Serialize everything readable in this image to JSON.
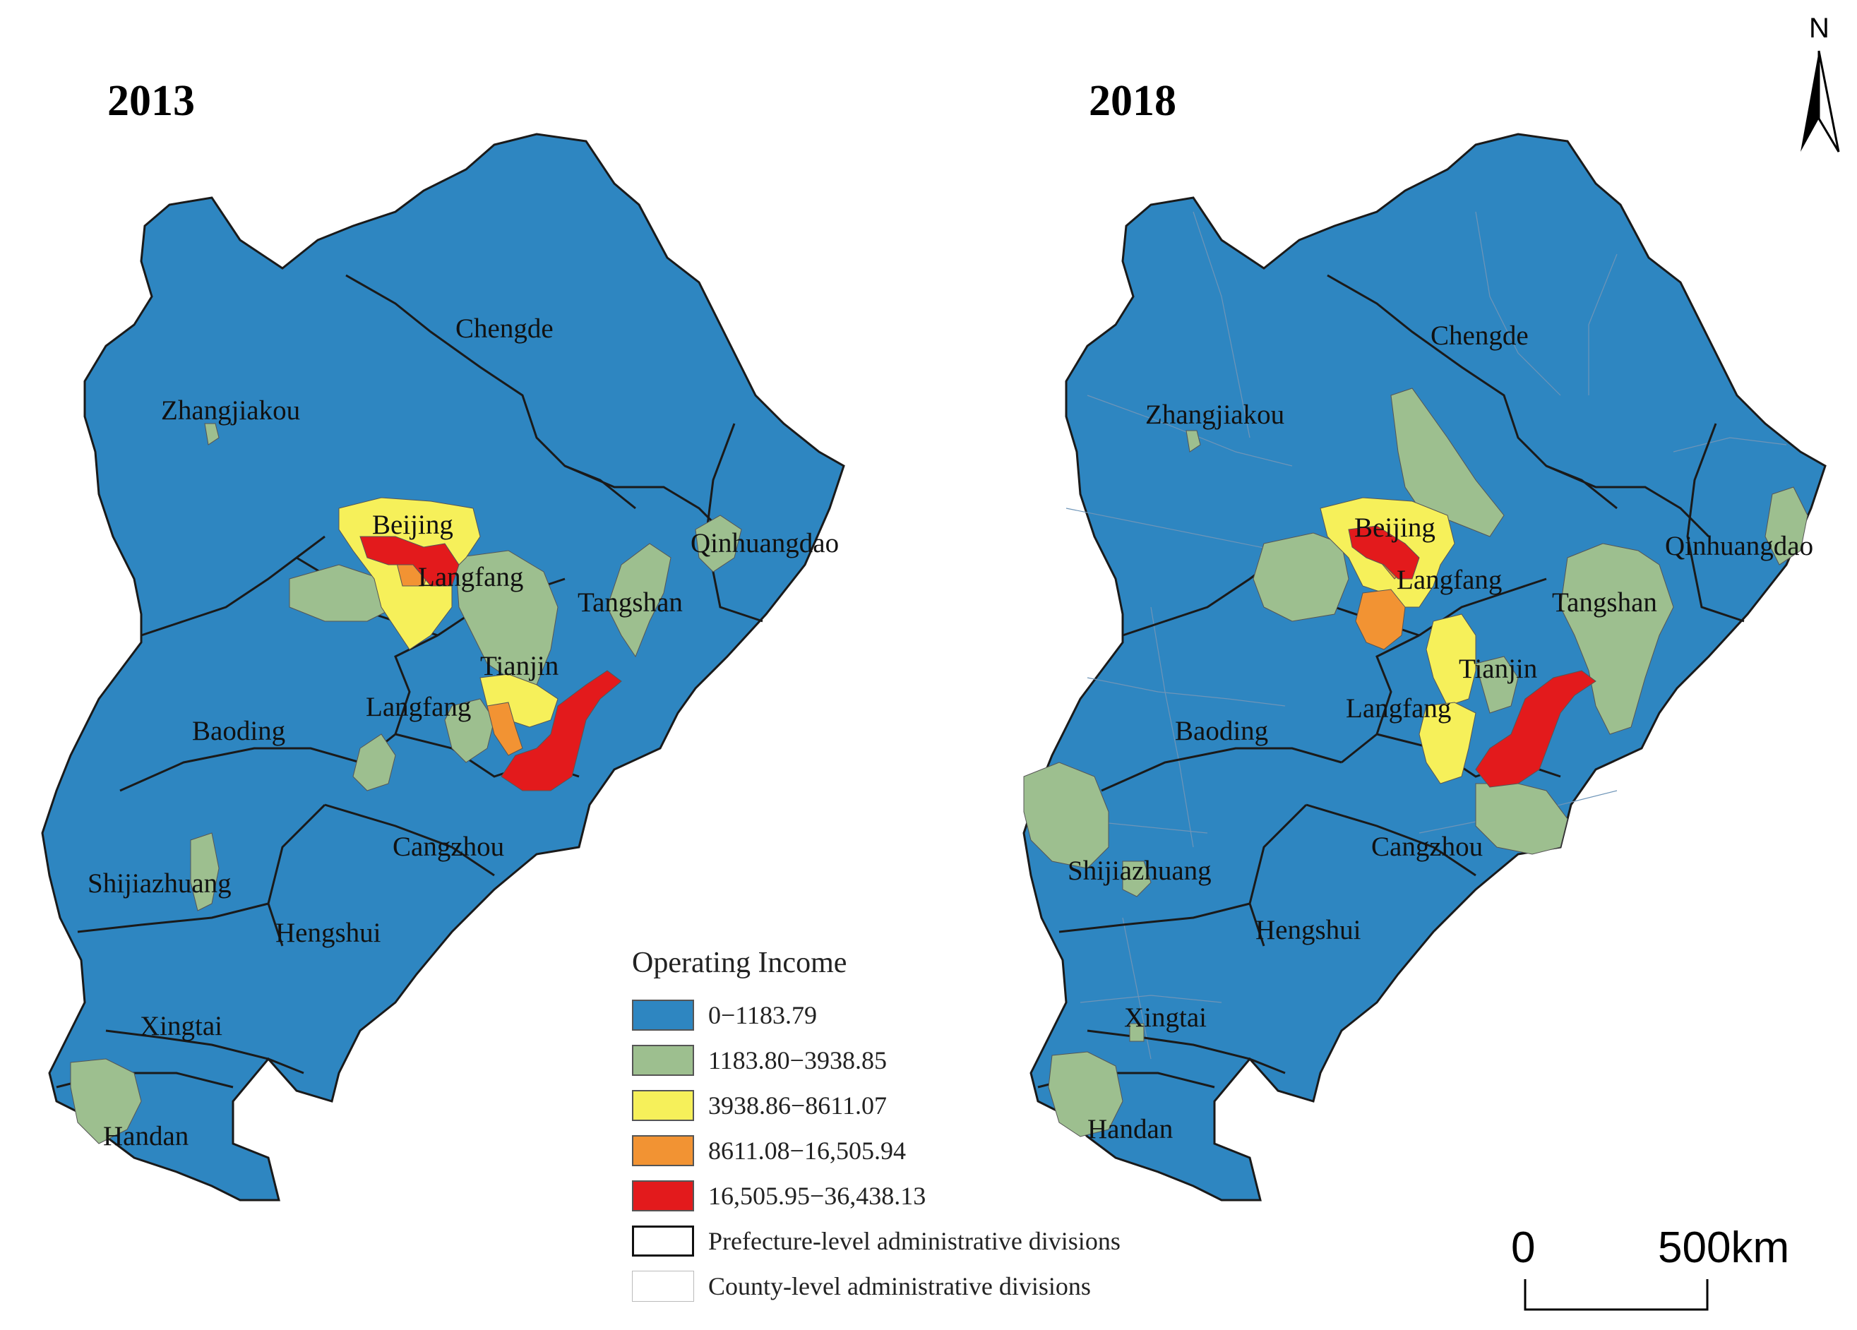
{
  "colors": {
    "class1": "#2e86c1",
    "class2": "#9dbf8f",
    "class3": "#f6f05a",
    "class4": "#f29333",
    "class5": "#e31a1c",
    "prefecture_border": "#1a1a1a",
    "county_border": "#8aa8c2"
  },
  "maps": [
    {
      "year": "2013",
      "labels": [
        "Chengde",
        "Zhangjiakou",
        "Beijing",
        "Langfang",
        "Qinhuangdao",
        "Tangshan",
        "Tianjin",
        "Langfang",
        "Baoding",
        "Cangzhou",
        "Shijiazhuang",
        "Hengshui",
        "Xingtai",
        "Handan"
      ]
    },
    {
      "year": "2018",
      "labels": [
        "Chengde",
        "Zhangjiakou",
        "Beijing",
        "Langfang",
        "Qinhuangdao",
        "Tangshan",
        "Tianjin",
        "Langfang",
        "Baoding",
        "Cangzhou",
        "Shijiazhuang",
        "Hengshui",
        "Xingtai",
        "Handan"
      ]
    }
  ],
  "legend": {
    "title": "Operating Income",
    "classes": [
      {
        "label": "0−1183.79",
        "color": "#2e86c1"
      },
      {
        "label": "1183.80−3938.85",
        "color": "#9dbf8f"
      },
      {
        "label": "3938.86−8611.07",
        "color": "#f6f05a"
      },
      {
        "label": "8611.08−16,505.94",
        "color": "#f29333"
      },
      {
        "label": "16,505.95−36,438.13",
        "color": "#e31a1c"
      },
      {
        "label": "Prefecture-level administrative divisions",
        "color": "#ffffff"
      },
      {
        "label": "County-level administrative divisions",
        "color": "#ffffff"
      }
    ]
  },
  "north_arrow": {
    "letter": "N",
    "icon": "north-arrow-icon"
  },
  "scale_bar": {
    "start": "0",
    "end": "500km"
  }
}
